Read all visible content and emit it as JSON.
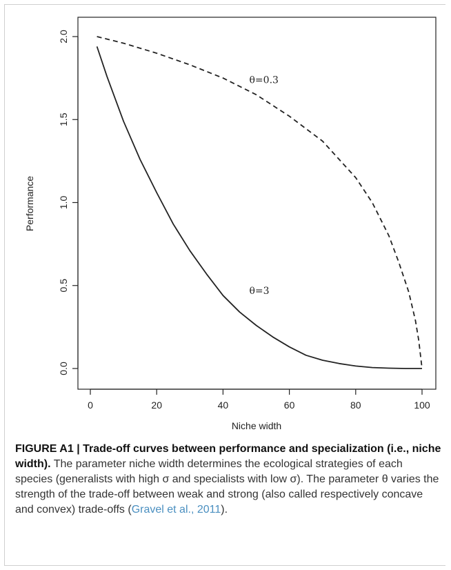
{
  "chart_data": {
    "type": "line",
    "title": "",
    "xlabel": "Niche width",
    "ylabel": "Performance",
    "xlim": [
      0,
      100
    ],
    "ylim": [
      0,
      2
    ],
    "xticks": [
      0,
      20,
      40,
      60,
      80,
      100
    ],
    "yticks": [
      0.0,
      0.5,
      1.0,
      1.5,
      2.0
    ],
    "ytick_labels": [
      "0.0",
      "0.5",
      "1.0",
      "1.5",
      "2.0"
    ],
    "grid": false,
    "legend": "none",
    "series": [
      {
        "label": "θ=0.3",
        "style": "dashed",
        "color": "#222222",
        "x": [
          2,
          10,
          20,
          30,
          40,
          50,
          60,
          70,
          80,
          85,
          90,
          93,
          96,
          98,
          99,
          100
        ],
        "y": [
          2.0,
          1.96,
          1.9,
          1.83,
          1.75,
          1.65,
          1.52,
          1.37,
          1.15,
          1.0,
          0.8,
          0.64,
          0.46,
          0.29,
          0.17,
          0.0
        ],
        "label_at": [
          50,
          1.72
        ]
      },
      {
        "label": "θ=3",
        "style": "solid",
        "color": "#222222",
        "x": [
          2,
          5,
          10,
          15,
          20,
          25,
          30,
          35,
          40,
          45,
          50,
          55,
          60,
          65,
          70,
          75,
          80,
          85,
          90,
          95,
          100
        ],
        "y": [
          1.94,
          1.76,
          1.49,
          1.26,
          1.06,
          0.87,
          0.71,
          0.57,
          0.44,
          0.34,
          0.26,
          0.19,
          0.13,
          0.08,
          0.05,
          0.03,
          0.015,
          0.006,
          0.002,
          0.0,
          0.0
        ],
        "label_at": [
          50,
          0.45
        ]
      }
    ]
  },
  "caption": {
    "figure_label": "FIGURE A1 | Trade-off curves between performance and specialization (i.e., niche width).",
    "text": " The parameter niche width determines the ecological strategies of each species (generalists with high σ and specialists with low σ). The parameter θ varies the strength of the trade-off between weak and strong (also called respectively concave and convex) trade-offs (",
    "reference": "Gravel et al., 2011",
    "closing": ")."
  }
}
